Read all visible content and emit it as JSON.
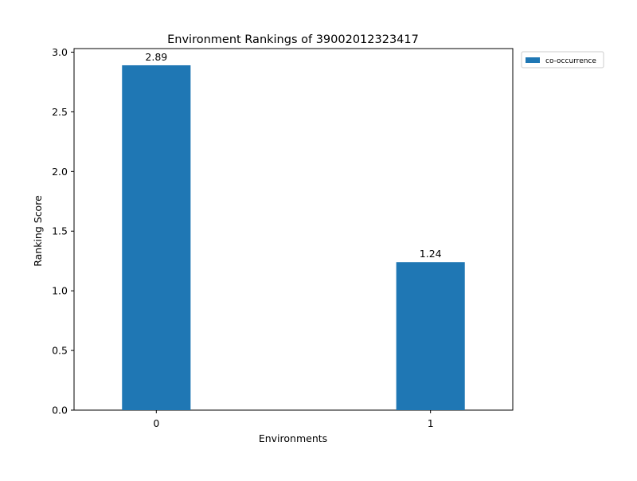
{
  "chart_data": {
    "type": "bar",
    "title": "Environment Rankings of 39002012323417",
    "xlabel": "Environments",
    "ylabel": "Ranking Score",
    "categories": [
      "0",
      "1"
    ],
    "series": [
      {
        "name": "co-occurrence",
        "values": [
          2.89,
          1.24
        ],
        "color": "#1f77b4"
      }
    ],
    "data_labels": [
      "2.89",
      "1.24"
    ],
    "ylim": [
      0,
      3.03
    ],
    "yticks": [
      0.0,
      0.5,
      1.0,
      1.5,
      2.0,
      2.5,
      3.0
    ],
    "ytick_labels": [
      "0.0",
      "0.5",
      "1.0",
      "1.5",
      "2.0",
      "2.5",
      "3.0"
    ],
    "grid": false,
    "legend_position": "outside-top-right"
  }
}
